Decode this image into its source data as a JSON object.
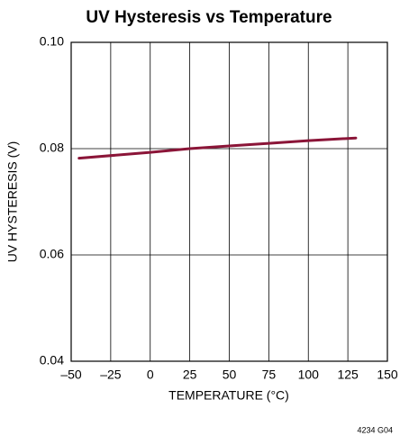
{
  "chart_data": {
    "type": "line",
    "title": "UV Hysteresis vs Temperature",
    "x_label": "TEMPERATURE (°C)",
    "y_label": "UV HYSTERESIS (V)",
    "note": "4234 G04",
    "x": [
      -45,
      0,
      25,
      50,
      75,
      100,
      130
    ],
    "series": [
      {
        "color": "#8b1538",
        "values": [
          0.0782,
          0.0793,
          0.08,
          0.0805,
          0.081,
          0.0815,
          0.082
        ]
      }
    ],
    "xlim": [
      -50,
      150
    ],
    "xticks": [
      {
        "value": -50,
        "label": "–50"
      },
      {
        "value": -25,
        "label": "–25"
      },
      0,
      25,
      50,
      75,
      100,
      125,
      150
    ],
    "ylim": [
      0.04,
      0.1
    ],
    "yticks": [
      0.04,
      0.06,
      0.08,
      {
        "value": 0.1,
        "label": "0.10"
      }
    ],
    "grid": true
  }
}
